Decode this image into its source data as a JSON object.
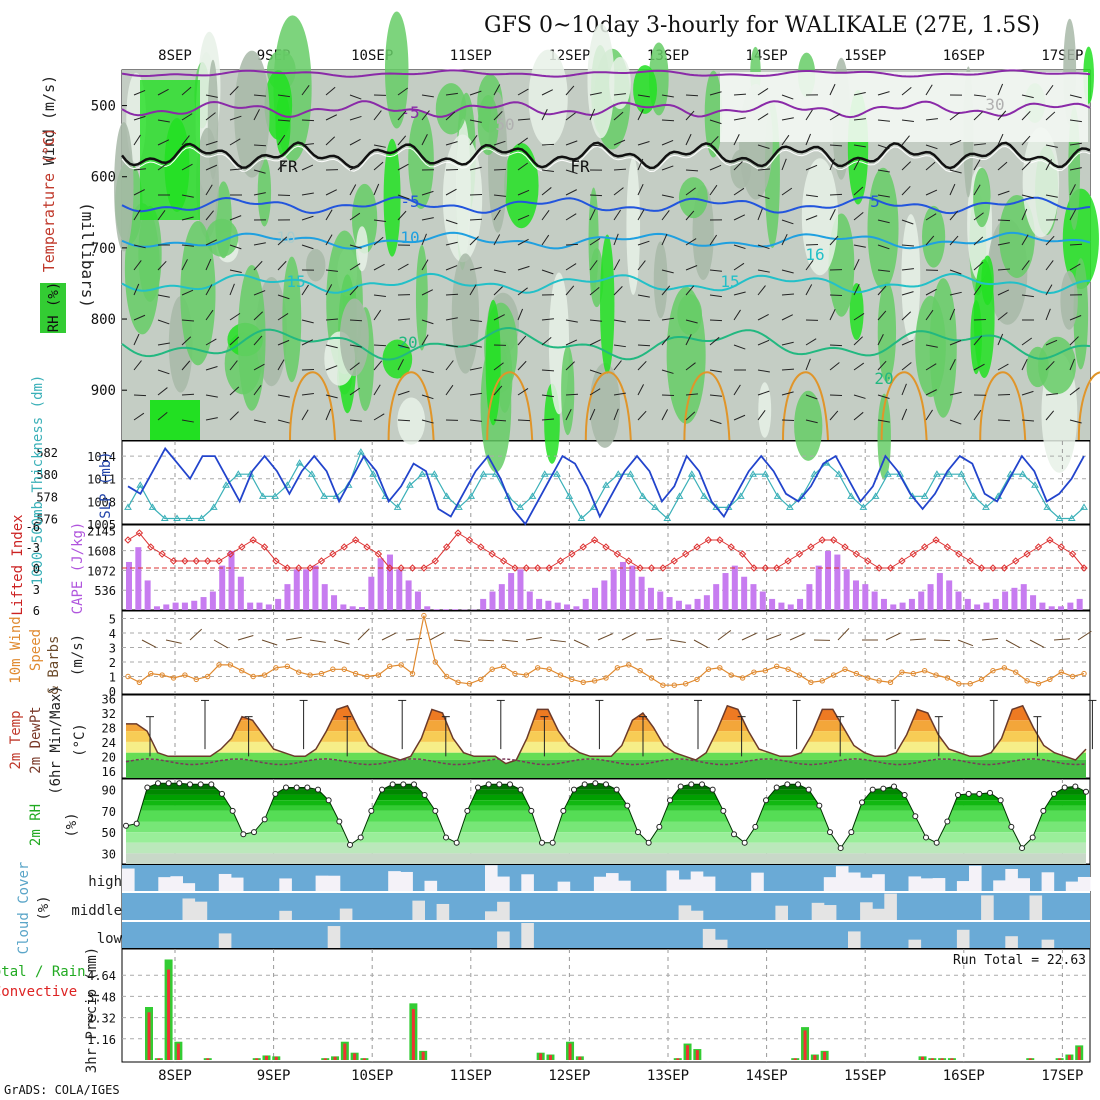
{
  "title": "GFS 0~10day 3-hourly for WALIKALE (27E, 1.5S)",
  "footer": "GrADS: COLA/IGES",
  "dates": [
    "8SEP",
    "9SEP",
    "10SEP",
    "11SEP",
    "12SEP",
    "13SEP",
    "14SEP",
    "15SEP",
    "16SEP",
    "17SEP"
  ],
  "panels": {
    "upper": {
      "ylabel": "(millibars)",
      "legend_wind": "Wind (m/s)",
      "legend_temp": "Temperature (°C)",
      "legend_rh": "RH (%)",
      "ticks": [
        500,
        600,
        700,
        800,
        900
      ],
      "contour_labels": [
        "-5",
        "FR",
        "FR",
        "-5",
        "10",
        "15",
        "15",
        "20",
        "20",
        "16",
        "10",
        "5",
        "50",
        "30"
      ]
    },
    "slp": {
      "left_label": "1000-500mb Thickness (dm)",
      "right_label": "SLP (mb)",
      "left_ticks": [
        "582",
        "580",
        "578",
        "576"
      ],
      "right_ticks": [
        "1014",
        "1011",
        "1008",
        "1005"
      ]
    },
    "li": {
      "left_label": "Lifted Index",
      "right_label": "CAPE (J/kg)",
      "left_ticks": [
        "-6",
        "-3",
        "0",
        "3",
        "6"
      ],
      "right_ticks": [
        "2145",
        "1608",
        "1072",
        "536"
      ]
    },
    "wind10": {
      "label1": "10m Wind",
      "label2": "Speed",
      "label3": "& Barbs",
      "unit": "(m/s)",
      "ticks": [
        "0",
        "1",
        "2",
        "3",
        "4",
        "5"
      ]
    },
    "temp2m": {
      "label1": "2m Temp",
      "label2": "2m DewPt",
      "label3": "(6hr Min/Max)",
      "unit": "(°C)",
      "ticks": [
        "16",
        "20",
        "24",
        "28",
        "32",
        "36"
      ]
    },
    "rh2m": {
      "label": "2m RH",
      "unit": "(%)",
      "ticks": [
        "30",
        "50",
        "70",
        "90"
      ]
    },
    "cloud": {
      "label": "Cloud Cover",
      "unit": "(%)",
      "levels": [
        "high",
        "middle",
        "low"
      ]
    },
    "precip": {
      "label1": "Total / Rain",
      "label2": "Convective",
      "unit": "3hr Precip (mm)",
      "run_total": "Run Total = 22.63",
      "ticks": [
        "1.16",
        "2.32",
        "3.48",
        "4.64"
      ]
    }
  },
  "chart_data": {
    "type": "line",
    "series_slp": [
      1010,
      1009,
      1012,
      1015,
      1013,
      1011,
      1014,
      1014,
      1011,
      1008,
      1012,
      1014,
      1012,
      1009,
      1012,
      1014,
      1012,
      1008,
      1011,
      1014,
      1012,
      1008,
      1010,
      1013,
      1012,
      1007,
      1006,
      1009,
      1012,
      1014,
      1011,
      1007,
      1005,
      1008,
      1011,
      1014,
      1013,
      1010,
      1006,
      1009,
      1012,
      1014,
      1012,
      1008,
      1010,
      1014,
      1012,
      1008,
      1006,
      1009,
      1012,
      1014,
      1012,
      1009,
      1008,
      1010,
      1013,
      1014,
      1011,
      1008,
      1010,
      1014,
      1012,
      1009,
      1007,
      1009,
      1012,
      1014,
      1013,
      1009,
      1008,
      1011,
      1014,
      1012,
      1008,
      1009,
      1011,
      1014
    ],
    "series_thickness": [
      577,
      579,
      577,
      576,
      576,
      576,
      576,
      577,
      579,
      580,
      580,
      578,
      578,
      579,
      581,
      580,
      578,
      578,
      579,
      582,
      580,
      578,
      577,
      579,
      580,
      580,
      578,
      577,
      578,
      580,
      580,
      578,
      577,
      578,
      580,
      580,
      578,
      576,
      577,
      579,
      580,
      580,
      578,
      577,
      576,
      578,
      580,
      578,
      577,
      577,
      578,
      580,
      580,
      578,
      577,
      578,
      580,
      581,
      580,
      578,
      577,
      578,
      580,
      580,
      578,
      578,
      580,
      580,
      580,
      578,
      577,
      578,
      580,
      580,
      579,
      577,
      576,
      576,
      577
    ],
    "series_cape": [
      1300,
      1700,
      800,
      100,
      150,
      200,
      200,
      250,
      350,
      500,
      1200,
      1600,
      900,
      200,
      200,
      150,
      300,
      700,
      1100,
      1100,
      1200,
      700,
      400,
      150,
      100,
      80,
      900,
      1400,
      1500,
      1100,
      800,
      500,
      100,
      20,
      20,
      20,
      10,
      10,
      300,
      500,
      700,
      1000,
      1100,
      500,
      300,
      250,
      200,
      150,
      100,
      300,
      600,
      800,
      1100,
      1300,
      1200,
      900,
      600,
      500,
      350,
      250,
      150,
      300,
      400,
      700,
      1000,
      1200,
      900,
      700,
      500,
      300,
      200,
      150,
      300,
      700,
      1200,
      1600,
      1500,
      1100,
      800,
      700,
      500,
      300,
      150,
      200,
      300,
      500,
      700,
      1000,
      800,
      500,
      300,
      150,
      200,
      300,
      500,
      600,
      700,
      400,
      200,
      100,
      100,
      200,
      300
    ],
    "series_li": [
      -4,
      -5,
      -3,
      -2,
      -1,
      -1,
      -1,
      -1,
      -1,
      -2,
      -3,
      -4,
      -3,
      -1,
      0,
      0,
      0,
      -1,
      -2,
      -3,
      -4,
      -3,
      -2,
      0,
      0,
      0,
      0,
      -1,
      -3,
      -5,
      -4,
      -3,
      -2,
      -1,
      0,
      0,
      0,
      0,
      -1,
      -2,
      -3,
      -4,
      -3,
      -2,
      -1,
      0,
      0,
      0,
      -1,
      -2,
      -3,
      -4,
      -4,
      -3,
      -2,
      0,
      0,
      0,
      -1,
      -2,
      -3,
      -4,
      -4,
      -3,
      -2,
      -1,
      0,
      0,
      -1,
      -2,
      -3,
      -4,
      -3,
      -2,
      -1,
      0,
      0,
      0,
      -1,
      -2,
      -3,
      -4,
      -3,
      -2,
      0
    ],
    "series_wind10": [
      1,
      0.6,
      1.2,
      1.1,
      0.9,
      1.1,
      0.8,
      1,
      1.8,
      1.8,
      1.4,
      1,
      1.1,
      1.6,
      1.7,
      1.3,
      1.1,
      1.2,
      1.5,
      1.5,
      1.2,
      1,
      1.1,
      1.7,
      1.8,
      1.2,
      5.2,
      2,
      1,
      0.6,
      0.5,
      0.8,
      1.5,
      1.7,
      1.2,
      1.1,
      1.6,
      1.5,
      1.1,
      0.8,
      0.6,
      0.7,
      0.9,
      1.6,
      1.8,
      1.4,
      0.9,
      0.4,
      0.4,
      0.5,
      0.8,
      1.5,
      1.6,
      1.1,
      0.9,
      1.3,
      1.4,
      1.7,
      1.5,
      1.1,
      0.6,
      0.7,
      1.1,
      1.5,
      1.2,
      0.9,
      0.7,
      0.6,
      1.3,
      1.2,
      1.4,
      1.1,
      0.9,
      0.5,
      0.5,
      0.8,
      1.4,
      1.6,
      1.3,
      0.7,
      0.5,
      0.8,
      1.3,
      1,
      1.2
    ],
    "series_temp2m": [
      29,
      29,
      27,
      21,
      20,
      20,
      20,
      20,
      20,
      22,
      25,
      31,
      30,
      26,
      22,
      21,
      20,
      20,
      22,
      27,
      33,
      34,
      28,
      23,
      21,
      20,
      19,
      20,
      25,
      33,
      32,
      25,
      21,
      20,
      20,
      20,
      18,
      19,
      25,
      33,
      33,
      27,
      23,
      21,
      20,
      20,
      20,
      23,
      30,
      32,
      28,
      23,
      21,
      20,
      19,
      21,
      27,
      34,
      33,
      27,
      22,
      21,
      20,
      20,
      21,
      26,
      33,
      33,
      28,
      23,
      21,
      20,
      20,
      21,
      26,
      33,
      32,
      26,
      22,
      21,
      20,
      20,
      21,
      25,
      33,
      34,
      28,
      23,
      21,
      20,
      19,
      22
    ],
    "series_rh2m": [
      56,
      58,
      92,
      96,
      96,
      96,
      95,
      95,
      95,
      86,
      70,
      48,
      50,
      62,
      86,
      92,
      92,
      92,
      90,
      80,
      60,
      38,
      45,
      70,
      90,
      95,
      95,
      95,
      85,
      70,
      45,
      40,
      70,
      92,
      95,
      95,
      95,
      90,
      70,
      40,
      40,
      70,
      90,
      95,
      96,
      95,
      90,
      75,
      50,
      40,
      55,
      80,
      93,
      95,
      95,
      90,
      70,
      48,
      40,
      55,
      80,
      92,
      95,
      95,
      90,
      75,
      50,
      35,
      50,
      78,
      90,
      91,
      93,
      85,
      65,
      45,
      40,
      60,
      85,
      86,
      86,
      87,
      80,
      55,
      35,
      45,
      70,
      86,
      92,
      93,
      88
    ],
    "series_precip_total": [
      2.9,
      0.1,
      5.5,
      1.0,
      0,
      0,
      0.1,
      0,
      0,
      0,
      0,
      0.1,
      0.25,
      0.2,
      0,
      0,
      0,
      0,
      0.1,
      0.2,
      1.0,
      0.4,
      0.1,
      0,
      0,
      0,
      0,
      3.1,
      0.5,
      0,
      0,
      0,
      0,
      0,
      0,
      0,
      0,
      0,
      0,
      0,
      0.4,
      0.3,
      0,
      1.0,
      0.2,
      0,
      0,
      0,
      0,
      0,
      0,
      0,
      0,
      0,
      0.1,
      0.9,
      0.6,
      0,
      0,
      0,
      0,
      0,
      0,
      0,
      0,
      0,
      0.1,
      1.8,
      0.3,
      0.5,
      0,
      0,
      0,
      0,
      0,
      0,
      0,
      0,
      0,
      0.2,
      0.1,
      0.1,
      0.1,
      0,
      0,
      0,
      0,
      0,
      0,
      0,
      0.1,
      0,
      0,
      0.1,
      0.3,
      0.8
    ],
    "ylim_precip": [
      0,
      5.8
    ]
  }
}
